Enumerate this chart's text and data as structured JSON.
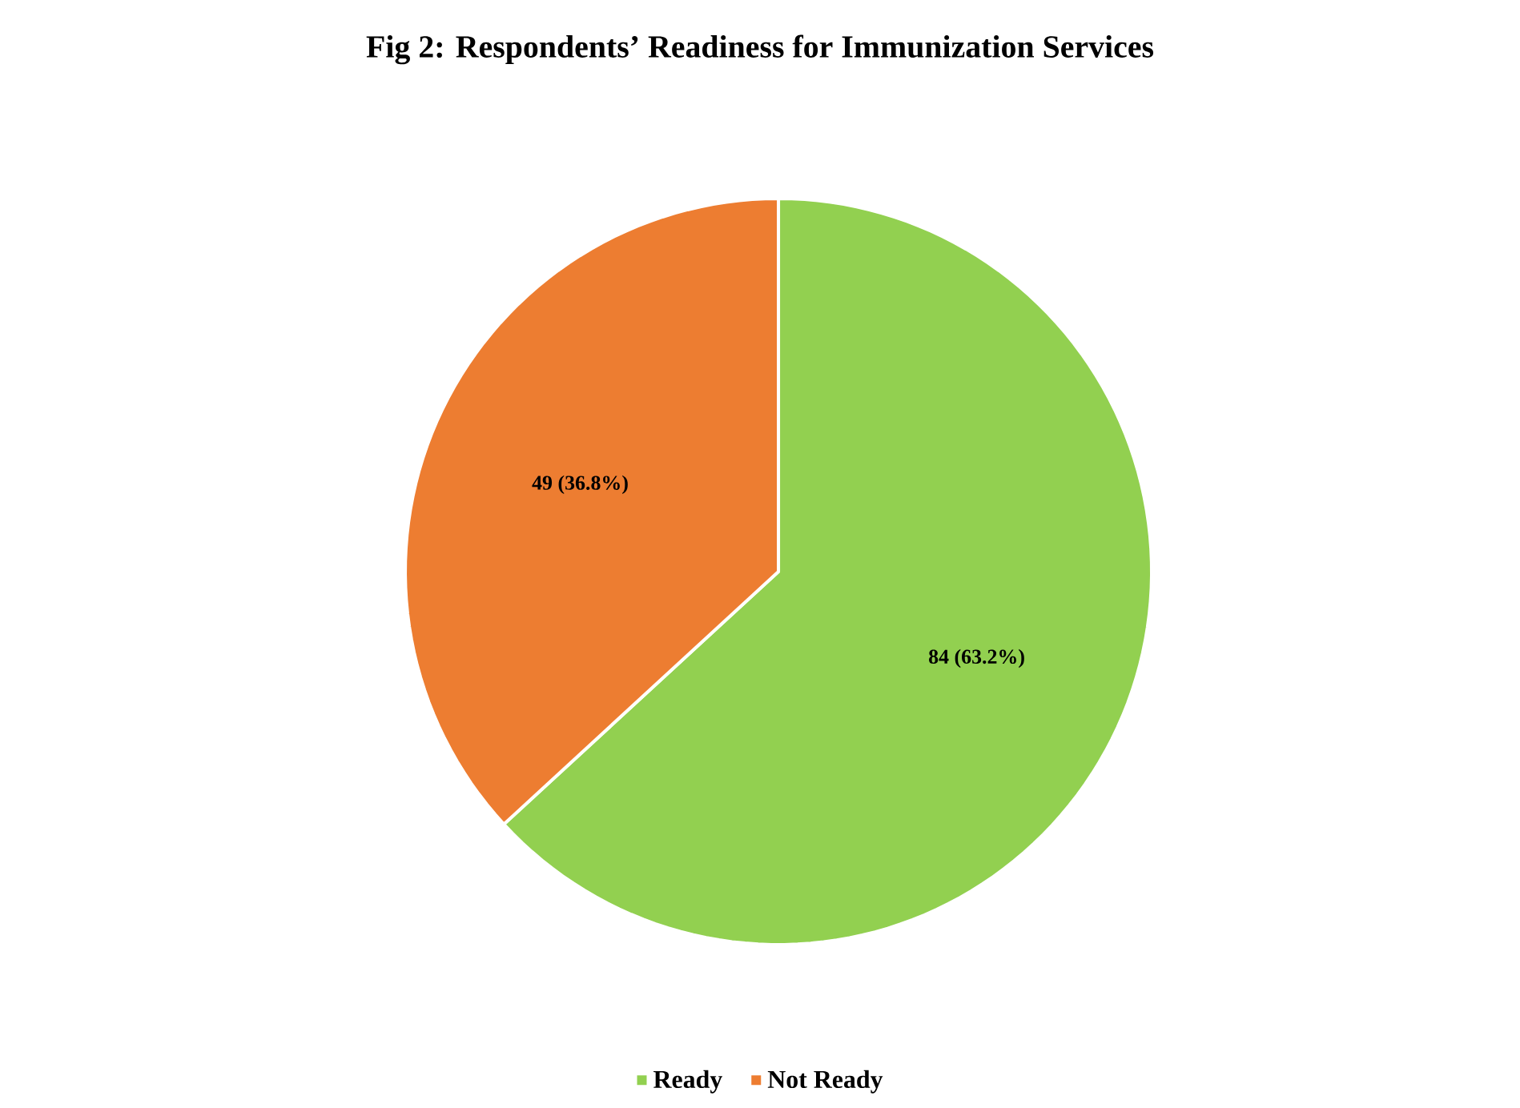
{
  "chart_data": {
    "type": "pie",
    "title": "Fig 2: Respondents’ Readiness for Immunization Services",
    "categories": [
      "Ready",
      "Not Ready"
    ],
    "values": [
      84,
      49
    ],
    "value_labels": [
      "84 (63.2%)",
      "49 (36.8%)"
    ],
    "colors": [
      "#92d050",
      "#ed7d31"
    ],
    "legend": "bottom"
  }
}
